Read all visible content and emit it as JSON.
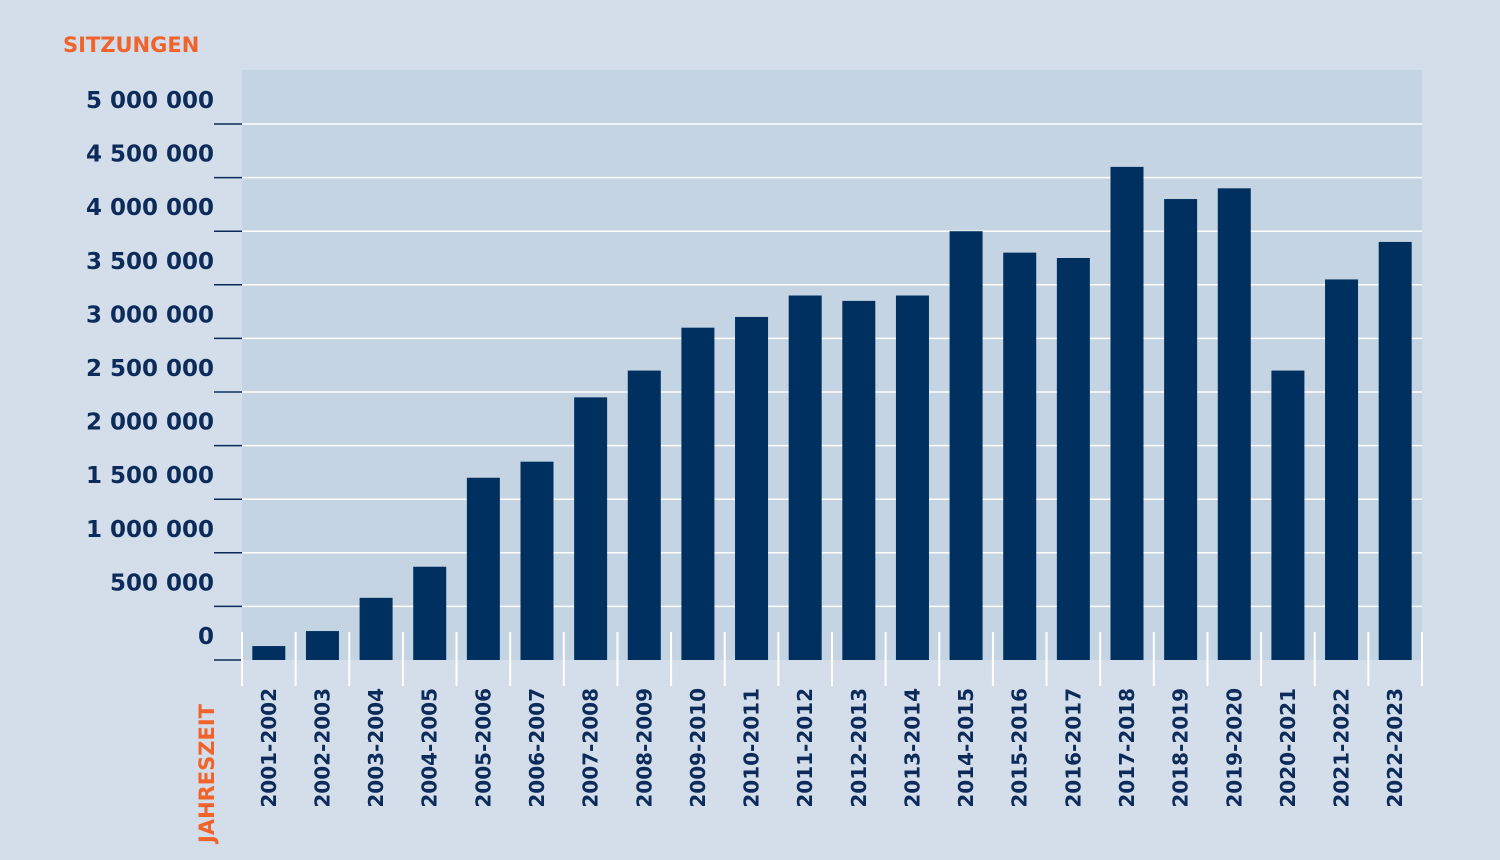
{
  "chart_data": {
    "type": "bar",
    "ylabel": "SITZUNGEN",
    "xlabel": "JAHRESZEIT",
    "categories": [
      "2001-2002",
      "2002-2003",
      "2003-2004",
      "2004-2005",
      "2005-2006",
      "2006-2007",
      "2007-2008",
      "2008-2009",
      "2009-2010",
      "2010-2011",
      "2011-2012",
      "2012-2013",
      "2013-2014",
      "2014-2015",
      "2015-2016",
      "2016-2017",
      "2017-2018",
      "2018-2019",
      "2019-2020",
      "2020-2021",
      "2021-2022",
      "2022-2023"
    ],
    "values": [
      130000,
      270000,
      580000,
      870000,
      1700000,
      1850000,
      2450000,
      2700000,
      3100000,
      3200000,
      3400000,
      3350000,
      3400000,
      4000000,
      3800000,
      3750000,
      4600000,
      4300000,
      4400000,
      2700000,
      3550000,
      3900000
    ],
    "yticks": [
      0,
      500000,
      1000000,
      1500000,
      2000000,
      2500000,
      3000000,
      3500000,
      4000000,
      4500000,
      5000000
    ],
    "ytick_labels": [
      "0",
      "500 000",
      "1 000 000",
      "1 500 000",
      "2 000 000",
      "2 500 000",
      "3 000 000",
      "3 500 000",
      "4 000 000",
      "4 500 000",
      "5 000 000"
    ],
    "ylim": [
      0,
      5000000
    ],
    "grid": true,
    "colors": {
      "background": "#d3deea",
      "plot_area": "#c5d4e2",
      "bar": "#00305f",
      "tick_text": "#0d2b5a",
      "axis_title": "#f0642c",
      "gridline": "#ffffff"
    }
  }
}
